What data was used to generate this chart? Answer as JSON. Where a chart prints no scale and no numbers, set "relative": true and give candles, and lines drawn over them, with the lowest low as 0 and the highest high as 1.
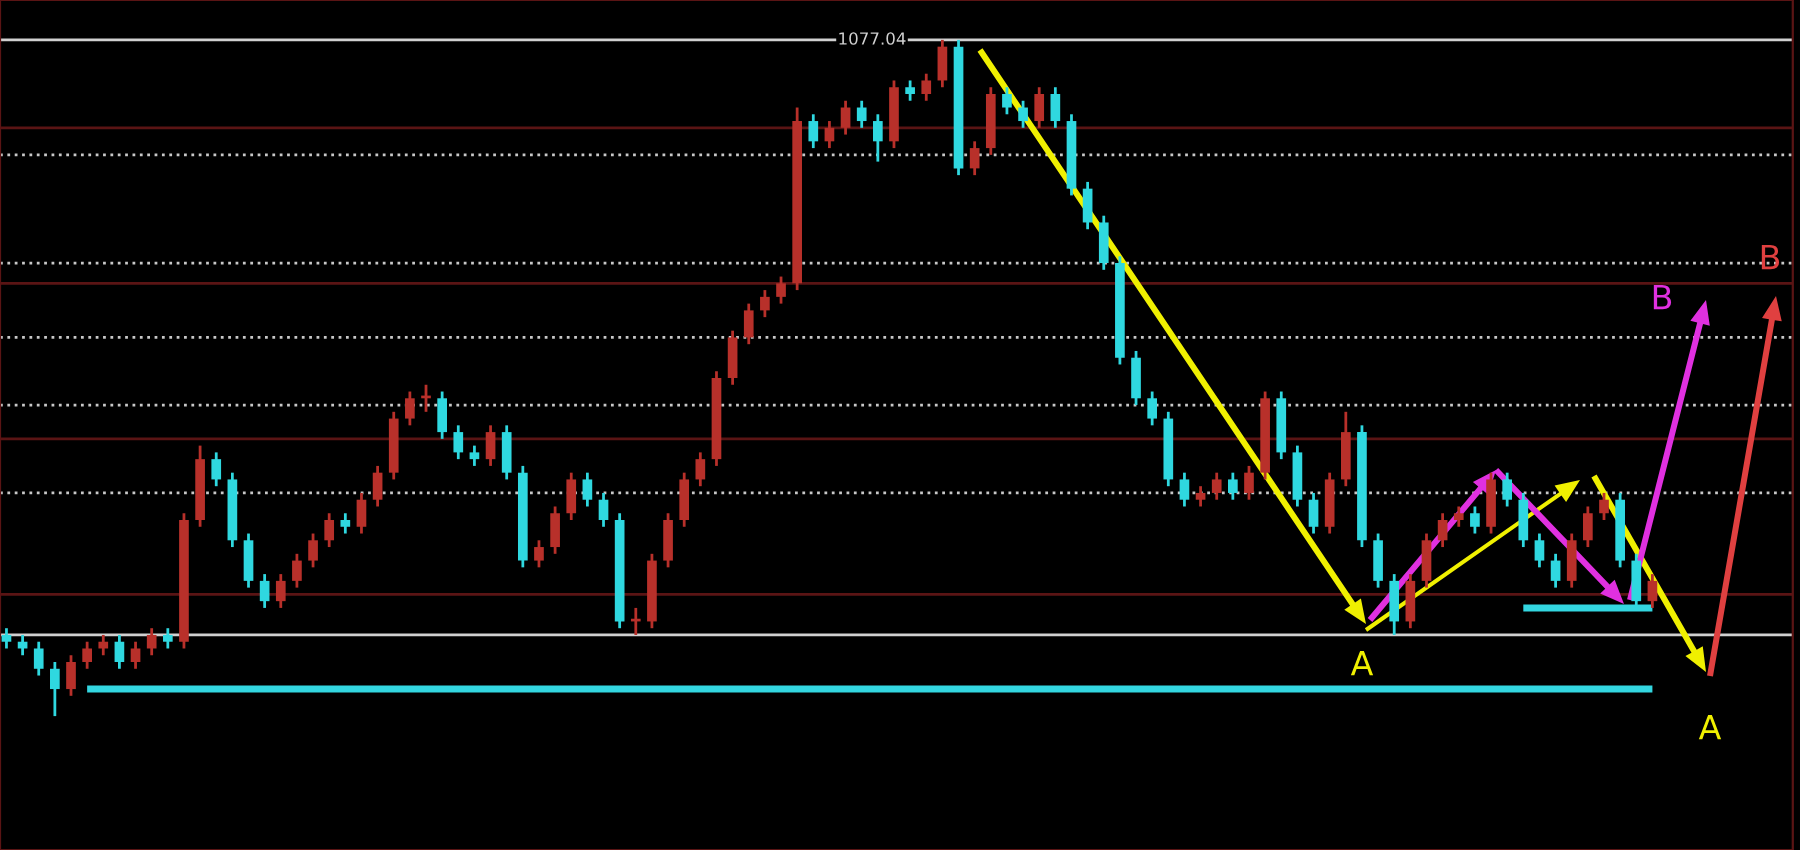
{
  "chart_data": {
    "type": "candlestick",
    "relative": true,
    "categories": [
      null,
      null,
      null,
      null,
      null,
      null,
      null,
      null,
      null,
      null,
      null,
      null,
      null,
      null,
      null,
      null,
      null,
      null,
      null,
      null,
      null,
      null,
      null,
      null,
      null,
      null,
      null,
      null,
      null,
      null,
      null,
      null,
      null,
      null,
      null,
      null,
      null,
      null,
      null,
      null,
      null,
      null,
      null,
      null,
      null,
      null,
      null,
      null,
      null,
      null,
      null,
      null,
      null,
      null,
      null,
      null,
      null,
      null,
      null,
      null,
      null,
      null,
      null,
      null,
      null,
      null,
      null,
      null,
      null,
      null,
      null,
      null,
      null,
      null,
      null,
      null,
      null,
      null,
      null,
      null,
      null,
      null,
      null,
      null,
      null,
      null,
      null,
      null,
      null,
      null,
      null,
      null,
      null,
      null,
      null,
      null,
      null,
      null,
      null,
      null,
      null,
      null,
      null
    ],
    "ohlc": [
      [
        0.12,
        0.13,
        0.1,
        0.11
      ],
      [
        0.11,
        0.12,
        0.09,
        0.1
      ],
      [
        0.1,
        0.11,
        0.06,
        0.07
      ],
      [
        0.07,
        0.08,
        0.0,
        0.04
      ],
      [
        0.04,
        0.09,
        0.03,
        0.08
      ],
      [
        0.08,
        0.11,
        0.07,
        0.1
      ],
      [
        0.1,
        0.12,
        0.09,
        0.11
      ],
      [
        0.11,
        0.12,
        0.07,
        0.08
      ],
      [
        0.08,
        0.11,
        0.07,
        0.1
      ],
      [
        0.1,
        0.13,
        0.09,
        0.12
      ],
      [
        0.12,
        0.13,
        0.1,
        0.11
      ],
      [
        0.11,
        0.3,
        0.1,
        0.29
      ],
      [
        0.29,
        0.4,
        0.28,
        0.38
      ],
      [
        0.38,
        0.39,
        0.34,
        0.35
      ],
      [
        0.35,
        0.36,
        0.25,
        0.26
      ],
      [
        0.26,
        0.27,
        0.19,
        0.2
      ],
      [
        0.2,
        0.21,
        0.16,
        0.17
      ],
      [
        0.17,
        0.21,
        0.16,
        0.2
      ],
      [
        0.2,
        0.24,
        0.19,
        0.23
      ],
      [
        0.23,
        0.27,
        0.22,
        0.26
      ],
      [
        0.26,
        0.3,
        0.25,
        0.29
      ],
      [
        0.29,
        0.3,
        0.27,
        0.28
      ],
      [
        0.28,
        0.33,
        0.27,
        0.32
      ],
      [
        0.32,
        0.37,
        0.31,
        0.36
      ],
      [
        0.36,
        0.45,
        0.35,
        0.44
      ],
      [
        0.44,
        0.48,
        0.43,
        0.47
      ],
      [
        0.47,
        0.49,
        0.45,
        0.47
      ],
      [
        0.47,
        0.48,
        0.41,
        0.42
      ],
      [
        0.42,
        0.43,
        0.38,
        0.39
      ],
      [
        0.39,
        0.4,
        0.37,
        0.38
      ],
      [
        0.38,
        0.43,
        0.37,
        0.42
      ],
      [
        0.42,
        0.43,
        0.35,
        0.36
      ],
      [
        0.36,
        0.37,
        0.22,
        0.23
      ],
      [
        0.23,
        0.26,
        0.22,
        0.25
      ],
      [
        0.25,
        0.31,
        0.24,
        0.3
      ],
      [
        0.3,
        0.36,
        0.29,
        0.35
      ],
      [
        0.35,
        0.36,
        0.31,
        0.32
      ],
      [
        0.32,
        0.33,
        0.28,
        0.29
      ],
      [
        0.29,
        0.3,
        0.13,
        0.14
      ],
      [
        0.14,
        0.16,
        0.12,
        0.14
      ],
      [
        0.14,
        0.24,
        0.13,
        0.23
      ],
      [
        0.23,
        0.3,
        0.22,
        0.29
      ],
      [
        0.29,
        0.36,
        0.28,
        0.35
      ],
      [
        0.35,
        0.39,
        0.34,
        0.38
      ],
      [
        0.38,
        0.51,
        0.37,
        0.5
      ],
      [
        0.5,
        0.57,
        0.49,
        0.56
      ],
      [
        0.56,
        0.61,
        0.55,
        0.6
      ],
      [
        0.6,
        0.63,
        0.59,
        0.62
      ],
      [
        0.62,
        0.65,
        0.61,
        0.64
      ],
      [
        0.64,
        0.9,
        0.63,
        0.88
      ],
      [
        0.88,
        0.89,
        0.84,
        0.85
      ],
      [
        0.85,
        0.88,
        0.84,
        0.87
      ],
      [
        0.87,
        0.91,
        0.86,
        0.9
      ],
      [
        0.9,
        0.91,
        0.87,
        0.88
      ],
      [
        0.88,
        0.89,
        0.82,
        0.85
      ],
      [
        0.85,
        0.94,
        0.84,
        0.93
      ],
      [
        0.93,
        0.94,
        0.91,
        0.92
      ],
      [
        0.92,
        0.95,
        0.91,
        0.94
      ],
      [
        0.94,
        1.0,
        0.93,
        0.99
      ],
      [
        0.99,
        1.0,
        0.8,
        0.81
      ],
      [
        0.81,
        0.85,
        0.8,
        0.84
      ],
      [
        0.84,
        0.93,
        0.83,
        0.92
      ],
      [
        0.92,
        0.93,
        0.89,
        0.9
      ],
      [
        0.9,
        0.91,
        0.87,
        0.88
      ],
      [
        0.88,
        0.93,
        0.87,
        0.92
      ],
      [
        0.92,
        0.93,
        0.87,
        0.88
      ],
      [
        0.88,
        0.89,
        0.77,
        0.78
      ],
      [
        0.78,
        0.79,
        0.72,
        0.73
      ],
      [
        0.73,
        0.74,
        0.66,
        0.67
      ],
      [
        0.67,
        0.68,
        0.52,
        0.53
      ],
      [
        0.53,
        0.54,
        0.46,
        0.47
      ],
      [
        0.47,
        0.48,
        0.43,
        0.44
      ],
      [
        0.44,
        0.45,
        0.34,
        0.35
      ],
      [
        0.35,
        0.36,
        0.31,
        0.32
      ],
      [
        0.32,
        0.34,
        0.31,
        0.33
      ],
      [
        0.33,
        0.36,
        0.32,
        0.35
      ],
      [
        0.35,
        0.36,
        0.32,
        0.33
      ],
      [
        0.33,
        0.37,
        0.32,
        0.36
      ],
      [
        0.36,
        0.48,
        0.35,
        0.47
      ],
      [
        0.47,
        0.48,
        0.38,
        0.39
      ],
      [
        0.39,
        0.4,
        0.31,
        0.32
      ],
      [
        0.32,
        0.33,
        0.27,
        0.28
      ],
      [
        0.28,
        0.36,
        0.27,
        0.35
      ],
      [
        0.35,
        0.45,
        0.34,
        0.42
      ],
      [
        0.42,
        0.43,
        0.25,
        0.26
      ],
      [
        0.26,
        0.27,
        0.19,
        0.2
      ],
      [
        0.2,
        0.21,
        0.12,
        0.14
      ],
      [
        0.14,
        0.21,
        0.13,
        0.2
      ],
      [
        0.2,
        0.27,
        0.19,
        0.26
      ],
      [
        0.26,
        0.3,
        0.25,
        0.29
      ],
      [
        0.29,
        0.31,
        0.28,
        0.3
      ],
      [
        0.3,
        0.31,
        0.27,
        0.28
      ],
      [
        0.28,
        0.36,
        0.27,
        0.35
      ],
      [
        0.35,
        0.36,
        0.31,
        0.32
      ],
      [
        0.32,
        0.33,
        0.25,
        0.26
      ],
      [
        0.26,
        0.27,
        0.22,
        0.23
      ],
      [
        0.23,
        0.24,
        0.19,
        0.2
      ],
      [
        0.2,
        0.27,
        0.19,
        0.26
      ],
      [
        0.26,
        0.31,
        0.25,
        0.3
      ],
      [
        0.3,
        0.33,
        0.29,
        0.32
      ],
      [
        0.32,
        0.33,
        0.22,
        0.23
      ],
      [
        0.23,
        0.24,
        0.16,
        0.17
      ],
      [
        0.17,
        0.21,
        0.16,
        0.2
      ]
    ],
    "series": [
      {
        "type": "line",
        "color": "#33d6e0",
        "values": [
          null,
          null,
          null,
          null,
          null,
          0.04,
          0.04,
          0.04,
          0.04,
          0.04,
          0.04,
          0.04,
          0.04,
          0.04,
          0.04,
          0.04,
          0.04,
          0.04,
          0.04,
          0.04,
          0.04,
          0.04,
          0.04,
          0.04,
          0.04,
          0.04,
          0.04,
          0.04,
          0.04,
          0.04,
          0.04,
          0.04,
          0.04,
          0.04,
          0.04,
          0.04,
          0.04,
          0.04,
          0.04,
          0.04,
          0.04,
          0.04,
          0.04,
          0.04,
          0.04,
          0.04,
          0.04,
          0.04,
          0.04,
          0.04,
          0.04,
          0.04,
          0.04,
          0.04,
          0.04,
          0.04,
          0.04,
          0.04,
          0.04,
          0.04,
          0.04,
          0.04,
          0.04,
          0.04,
          0.04,
          0.04,
          0.04,
          0.04,
          0.04,
          0.04,
          0.04,
          0.04,
          0.04,
          0.04,
          0.04,
          0.04,
          0.04,
          0.04,
          0.04,
          0.04,
          0.04,
          0.04,
          0.04,
          0.04,
          0.04,
          0.04,
          0.04,
          0.04,
          0.04,
          0.04,
          0.04,
          0.04,
          0.04,
          0.04,
          0.04,
          0.04,
          0.04,
          0.04,
          0.04,
          0.04,
          0.04,
          0.04,
          0.04
        ]
      },
      {
        "type": "line",
        "color": "#33d6e0",
        "values": [
          null,
          null,
          null,
          null,
          null,
          null,
          null,
          null,
          null,
          null,
          null,
          null,
          null,
          null,
          null,
          null,
          null,
          null,
          null,
          null,
          null,
          null,
          null,
          null,
          null,
          null,
          null,
          null,
          null,
          null,
          null,
          null,
          null,
          null,
          null,
          null,
          null,
          null,
          null,
          null,
          null,
          null,
          null,
          null,
          null,
          null,
          null,
          null,
          null,
          null,
          null,
          null,
          null,
          null,
          null,
          null,
          null,
          null,
          null,
          null,
          null,
          null,
          null,
          null,
          null,
          null,
          null,
          null,
          null,
          null,
          null,
          null,
          null,
          null,
          null,
          null,
          null,
          null,
          null,
          null,
          null,
          null,
          null,
          null,
          null,
          null,
          null,
          null,
          null,
          null,
          null,
          null,
          null,
          null,
          0.16,
          0.16,
          0.16,
          0.16,
          0.16,
          0.16,
          0.16,
          0.16,
          0.16
        ]
      }
    ],
    "ref_lines": [
      {
        "axis": "y",
        "value": 1.0,
        "color": "#d0d0d0",
        "line_style": "solid"
      },
      {
        "axis": "y",
        "value": 0.12,
        "color": "#d0d0d0",
        "line_style": "solid"
      },
      {
        "axis": "y",
        "value": 0.83,
        "color": "#c8c8c8",
        "line_style": "dotted"
      },
      {
        "axis": "y",
        "value": 0.67,
        "color": "#c8c8c8",
        "line_style": "dotted"
      },
      {
        "axis": "y",
        "value": 0.56,
        "color": "#c8c8c8",
        "line_style": "dotted"
      },
      {
        "axis": "y",
        "value": 0.46,
        "color": "#c8c8c8",
        "line_style": "dotted"
      },
      {
        "axis": "y",
        "value": 0.33,
        "color": "#c8c8c8",
        "line_style": "dotted"
      },
      {
        "axis": "y",
        "value": 0.87,
        "color": "#5a1414",
        "line_style": "solid"
      },
      {
        "axis": "y",
        "value": 0.64,
        "color": "#5a1414",
        "line_style": "solid"
      },
      {
        "axis": "y",
        "value": 0.41,
        "color": "#5a1414",
        "line_style": "solid"
      },
      {
        "axis": "y",
        "value": 0.18,
        "color": "#5a1414",
        "line_style": "solid"
      }
    ],
    "annotations": [
      "1077.04",
      "A",
      "A",
      "B",
      "B"
    ]
  }
}
